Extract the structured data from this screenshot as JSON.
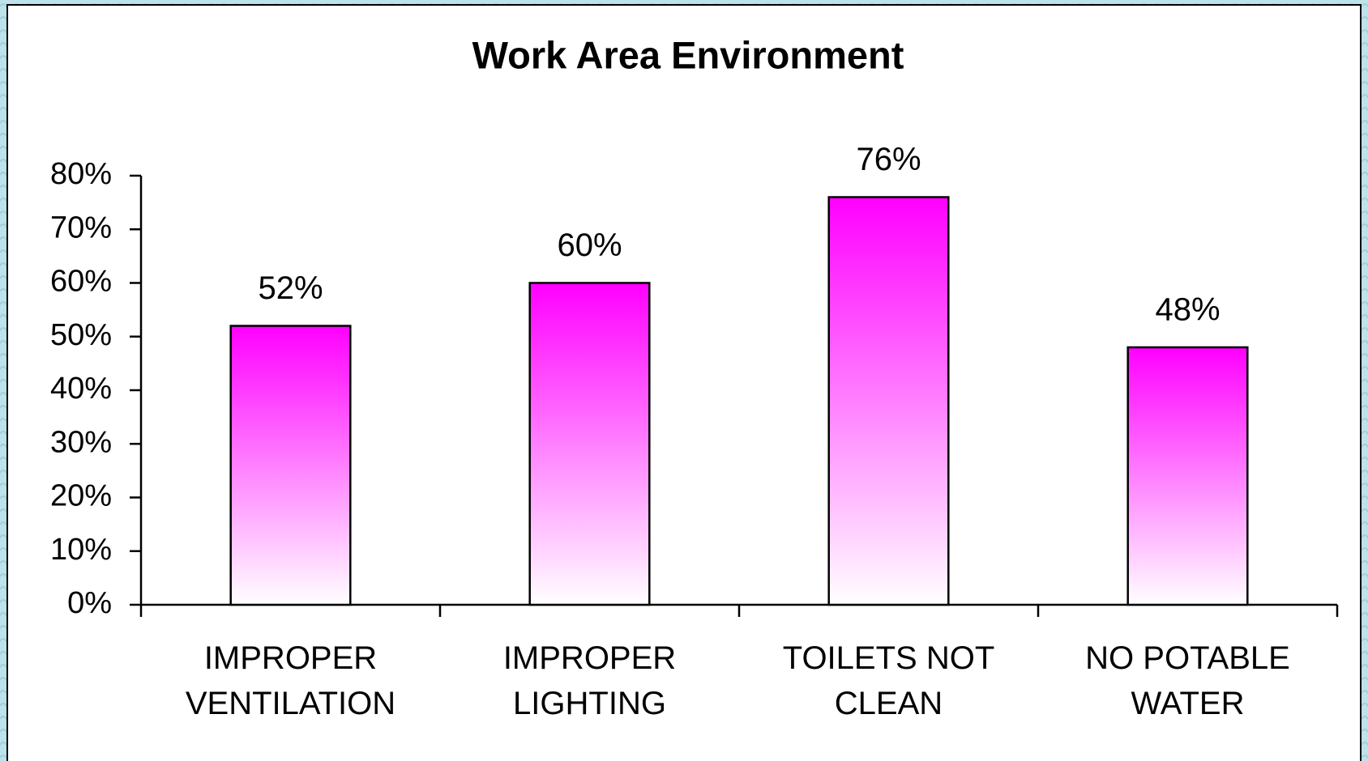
{
  "chart_data": {
    "type": "bar",
    "title": "Work Area Environment",
    "categories": [
      "IMPROPER VENTILATION",
      "IMPROPER LIGHTING",
      "TOILETS NOT CLEAN",
      "NO POTABLE WATER"
    ],
    "values": [
      52,
      60,
      76,
      48
    ],
    "value_labels": [
      "52%",
      "60%",
      "76%",
      "48%"
    ],
    "color": "#ff00ff",
    "ylim": [
      0,
      80
    ],
    "yticks": [
      {
        "value": 0,
        "label": "0%"
      },
      {
        "value": 10,
        "label": "10%"
      },
      {
        "value": 20,
        "label": "20%"
      },
      {
        "value": 30,
        "label": "30%"
      },
      {
        "value": 40,
        "label": "40%"
      },
      {
        "value": 50,
        "label": "50%"
      },
      {
        "value": 60,
        "label": "60%"
      },
      {
        "value": 70,
        "label": "70%"
      },
      {
        "value": 80,
        "label": "80%"
      }
    ],
    "grid": false
  }
}
